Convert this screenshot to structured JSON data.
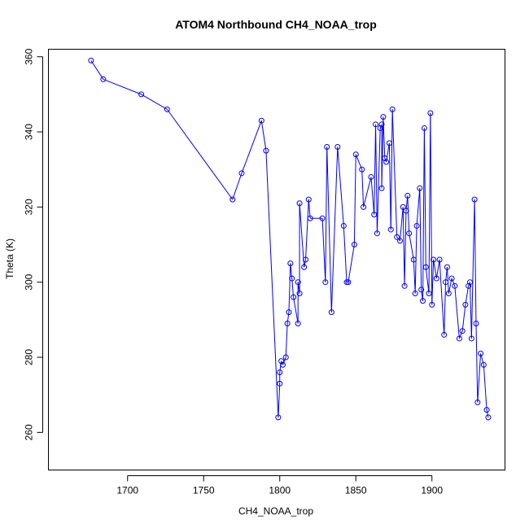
{
  "chart_data": {
    "type": "line",
    "title": "ATOM4 Northbound CH4_NOAA_trop",
    "xlabel": "CH4_NOAA_trop",
    "ylabel": "Theta (K)",
    "xlim": [
      1648,
      1948
    ],
    "ylim": [
      250,
      362
    ],
    "xticks": [
      1700,
      1750,
      1800,
      1850,
      1900
    ],
    "yticks": [
      260,
      280,
      300,
      320,
      340,
      360
    ],
    "series_color": "#0000ff",
    "series": [
      {
        "name": "CH4_NOAA_trop",
        "x": [
          1676,
          1684,
          1709,
          1726,
          1769,
          1775,
          1788,
          1791,
          1799,
          1800,
          1800,
          1801,
          1802,
          1804,
          1805,
          1806,
          1807,
          1808,
          1809,
          1812,
          1812,
          1813,
          1813,
          1816,
          1817,
          1819,
          1820,
          1828,
          1830,
          1831,
          1834,
          1838,
          1842,
          1844,
          1845,
          1849,
          1850,
          1854,
          1855,
          1860,
          1862,
          1863,
          1864,
          1866,
          1867,
          1867,
          1868,
          1869,
          1870,
          1872,
          1873,
          1874,
          1877,
          1879,
          1881,
          1882,
          1883,
          1884,
          1885,
          1888,
          1889,
          1890,
          1892,
          1893,
          1894,
          1895,
          1896,
          1898,
          1899,
          1900,
          1901,
          1903,
          1905,
          1908,
          1909,
          1910,
          1911,
          1913,
          1915,
          1918,
          1920,
          1922,
          1924,
          1925,
          1926,
          1928,
          1929,
          1930,
          1932,
          1934,
          1936,
          1937
        ],
        "y": [
          359,
          354,
          350,
          346,
          322,
          329,
          343,
          335,
          264,
          273,
          276,
          279,
          278,
          280,
          289,
          292,
          305,
          301,
          296,
          289,
          300,
          297,
          321,
          304,
          306,
          322,
          317,
          317,
          300,
          336,
          292,
          336,
          315,
          300,
          300,
          310,
          334,
          330,
          320,
          328,
          318,
          342,
          313,
          341,
          342,
          325,
          344,
          333,
          332,
          337,
          314,
          346,
          312,
          311,
          320,
          299,
          319,
          323,
          313,
          306,
          297,
          315,
          325,
          298,
          295,
          341,
          304,
          297,
          345,
          294,
          306,
          301,
          306,
          286,
          300,
          304,
          297,
          301,
          299,
          285,
          287,
          294,
          299,
          300,
          285,
          322,
          289,
          268,
          281,
          278,
          266,
          264
        ]
      }
    ]
  }
}
